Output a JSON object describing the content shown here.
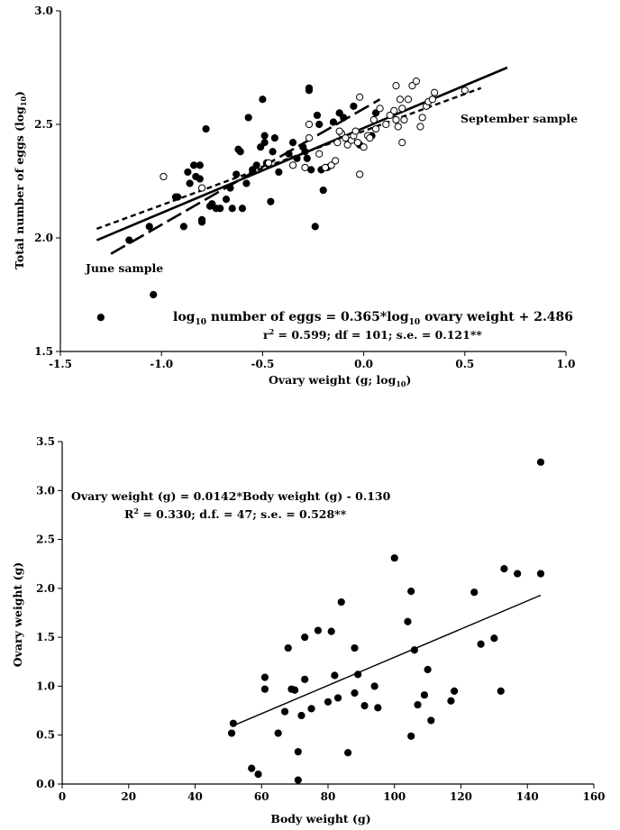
{
  "chart_data": [
    {
      "type": "scatter",
      "xlabel": "Ovary weight (g; log",
      "xlabel_sub": "10",
      "xlabel_end": ")",
      "ylabel": "Total number of eggs (log",
      "ylabel_sub": "10",
      "ylabel_end": ")",
      "xlim": [
        -1.5,
        1.0
      ],
      "ylim": [
        1.5,
        3.0
      ],
      "x_ticks": [
        -1.5,
        -1.0,
        -0.5,
        0.0,
        0.5,
        1.0
      ],
      "x_tick_labels": [
        "-1.5",
        "-1.0",
        "-0.5",
        "0.0",
        "0.5",
        "1.0"
      ],
      "y_ticks": [
        1.5,
        2.0,
        2.5,
        3.0
      ],
      "y_tick_labels": [
        "1.5",
        "2.0",
        "2.5",
        "3.0"
      ],
      "grid": false,
      "annotations": {
        "june": "June sample",
        "september": "September sample",
        "equation_parts": [
          "log",
          "10",
          " number of eggs = 0.365*log",
          "10",
          " ovary weight + 2.486"
        ],
        "stats_parts": [
          "r",
          "2",
          " = 0.599; df = 101; s.e. = 0.121**"
        ]
      },
      "series": [
        {
          "name": "June sample",
          "marker": "filled-circle",
          "points": [
            [
              -1.3,
              1.65
            ],
            [
              -1.04,
              1.75
            ],
            [
              -1.16,
              1.99
            ],
            [
              -1.06,
              2.05
            ],
            [
              -0.92,
              2.18
            ],
            [
              -0.93,
              2.18
            ],
            [
              -0.89,
              2.05
            ],
            [
              -0.86,
              2.24
            ],
            [
              -0.87,
              2.29
            ],
            [
              -0.84,
              2.32
            ],
            [
              -0.83,
              2.27
            ],
            [
              -0.81,
              2.26
            ],
            [
              -0.81,
              2.32
            ],
            [
              -0.8,
              2.07
            ],
            [
              -0.8,
              2.08
            ],
            [
              -0.78,
              2.48
            ],
            [
              -0.75,
              2.15
            ],
            [
              -0.73,
              2.13
            ],
            [
              -0.71,
              2.13
            ],
            [
              -0.66,
              2.22
            ],
            [
              -0.65,
              2.13
            ],
            [
              -0.63,
              2.28
            ],
            [
              -0.62,
              2.39
            ],
            [
              -0.61,
              2.38
            ],
            [
              -0.6,
              2.13
            ],
            [
              -0.58,
              2.24
            ],
            [
              -0.57,
              2.53
            ],
            [
              -0.53,
              2.32
            ],
            [
              -0.51,
              2.4
            ],
            [
              -0.5,
              2.61
            ],
            [
              -0.49,
              2.45
            ],
            [
              -0.49,
              2.42
            ],
            [
              -0.48,
              2.33
            ],
            [
              -0.46,
              2.16
            ],
            [
              -0.45,
              2.38
            ],
            [
              -0.44,
              2.44
            ],
            [
              -0.35,
              2.42
            ],
            [
              -0.33,
              2.35
            ],
            [
              -0.29,
              2.38
            ],
            [
              -0.28,
              2.35
            ],
            [
              -0.27,
              2.66
            ],
            [
              -0.27,
              2.65
            ],
            [
              -0.26,
              2.3
            ],
            [
              -0.24,
              2.05
            ],
            [
              -0.22,
              2.5
            ],
            [
              -0.21,
              2.3
            ],
            [
              -0.2,
              2.21
            ],
            [
              -0.18,
              2.31
            ],
            [
              -0.15,
              2.51
            ],
            [
              -0.12,
              2.55
            ],
            [
              -0.1,
              2.53
            ],
            [
              -0.05,
              2.58
            ],
            [
              -0.02,
              2.41
            ],
            [
              0.04,
              2.45
            ],
            [
              0.06,
              2.55
            ],
            [
              -0.37,
              2.37
            ],
            [
              -0.42,
              2.29
            ],
            [
              -0.55,
              2.3
            ],
            [
              -0.68,
              2.17
            ],
            [
              -0.76,
              2.14
            ],
            [
              -0.23,
              2.54
            ],
            [
              -0.3,
              2.4
            ]
          ]
        },
        {
          "name": "September sample",
          "marker": "open-circle",
          "points": [
            [
              -0.99,
              2.27
            ],
            [
              -0.8,
              2.22
            ],
            [
              -0.47,
              2.33
            ],
            [
              -0.35,
              2.32
            ],
            [
              -0.29,
              2.31
            ],
            [
              -0.27,
              2.44
            ],
            [
              -0.27,
              2.5
            ],
            [
              -0.22,
              2.37
            ],
            [
              -0.19,
              2.31
            ],
            [
              -0.16,
              2.32
            ],
            [
              -0.14,
              2.34
            ],
            [
              -0.13,
              2.42
            ],
            [
              -0.11,
              2.46
            ],
            [
              -0.09,
              2.44
            ],
            [
              -0.08,
              2.41
            ],
            [
              -0.06,
              2.43
            ],
            [
              -0.05,
              2.45
            ],
            [
              -0.04,
              2.47
            ],
            [
              -0.03,
              2.42
            ],
            [
              -0.02,
              2.28
            ],
            [
              -0.02,
              2.62
            ],
            [
              0.0,
              2.4
            ],
            [
              0.02,
              2.45
            ],
            [
              0.03,
              2.44
            ],
            [
              0.05,
              2.52
            ],
            [
              0.08,
              2.57
            ],
            [
              0.11,
              2.5
            ],
            [
              0.13,
              2.54
            ],
            [
              0.15,
              2.56
            ],
            [
              0.16,
              2.52
            ],
            [
              0.17,
              2.49
            ],
            [
              0.18,
              2.61
            ],
            [
              0.19,
              2.57
            ],
            [
              0.19,
              2.42
            ],
            [
              0.2,
              2.52
            ],
            [
              0.22,
              2.61
            ],
            [
              0.24,
              2.67
            ],
            [
              0.26,
              2.69
            ],
            [
              0.28,
              2.49
            ],
            [
              0.29,
              2.53
            ],
            [
              0.31,
              2.58
            ],
            [
              0.32,
              2.6
            ],
            [
              0.34,
              2.61
            ],
            [
              0.35,
              2.64
            ],
            [
              0.5,
              2.65
            ],
            [
              0.16,
              2.67
            ],
            [
              0.06,
              2.48
            ],
            [
              -0.12,
              2.47
            ]
          ]
        }
      ],
      "lines": [
        {
          "name": "regression-all",
          "style": "solid",
          "width": 2.6,
          "x": [
            -1.32,
            0.71
          ],
          "y": [
            1.99,
            2.75
          ]
        },
        {
          "name": "regression-june",
          "style": "long-dash",
          "width": 2.6,
          "x": [
            -1.25,
            0.08
          ],
          "y": [
            1.93,
            2.61
          ]
        },
        {
          "name": "regression-september",
          "style": "short-dash",
          "width": 2.4,
          "x": [
            -1.32,
            0.58
          ],
          "y": [
            2.04,
            2.66
          ]
        }
      ]
    },
    {
      "type": "scatter",
      "xlabel": "Body weight (g)",
      "ylabel": "Ovary weight (g)",
      "xlim": [
        0,
        160
      ],
      "ylim": [
        0.0,
        3.5
      ],
      "x_ticks": [
        0,
        20,
        40,
        60,
        80,
        100,
        120,
        140,
        160
      ],
      "x_tick_labels": [
        "0",
        "20",
        "40",
        "60",
        "80",
        "100",
        "120",
        "140",
        "160"
      ],
      "y_ticks": [
        0.0,
        0.5,
        1.0,
        1.5,
        2.0,
        2.5,
        3.0,
        3.5
      ],
      "y_tick_labels": [
        "0.0",
        "0.5",
        "1.0",
        "1.5",
        "2.0",
        "2.5",
        "3.0",
        "3.5"
      ],
      "grid": false,
      "annotations": {
        "equation": "Ovary weight (g) = 0.0142*Body weight (g) - 0.130",
        "stats_parts": [
          "R",
          "2",
          " = 0.330; d.f. = 47; s.e. = 0.528**"
        ]
      },
      "series": [
        {
          "marker": "filled-circle",
          "points": [
            [
              51,
              0.52
            ],
            [
              51.5,
              0.62
            ],
            [
              57,
              0.16
            ],
            [
              59,
              0.1
            ],
            [
              61,
              1.09
            ],
            [
              61,
              0.97
            ],
            [
              65,
              0.52
            ],
            [
              67,
              0.74
            ],
            [
              68,
              1.39
            ],
            [
              69,
              0.97
            ],
            [
              70,
              0.96
            ],
            [
              71,
              0.33
            ],
            [
              71,
              0.04
            ],
            [
              72,
              0.7
            ],
            [
              73,
              1.07
            ],
            [
              73,
              1.5
            ],
            [
              75,
              0.77
            ],
            [
              77,
              1.57
            ],
            [
              80,
              0.84
            ],
            [
              81,
              1.56
            ],
            [
              82,
              1.11
            ],
            [
              83,
              0.88
            ],
            [
              84,
              1.86
            ],
            [
              86,
              0.32
            ],
            [
              88,
              1.39
            ],
            [
              88,
              0.93
            ],
            [
              89,
              1.12
            ],
            [
              91,
              0.8
            ],
            [
              94,
              1.0
            ],
            [
              95,
              0.78
            ],
            [
              100,
              2.31
            ],
            [
              104,
              1.66
            ],
            [
              105,
              1.97
            ],
            [
              105,
              0.49
            ],
            [
              106,
              1.37
            ],
            [
              107,
              0.81
            ],
            [
              109,
              0.91
            ],
            [
              110,
              1.17
            ],
            [
              111,
              0.65
            ],
            [
              117,
              0.85
            ],
            [
              118,
              0.95
            ],
            [
              124,
              1.96
            ],
            [
              126,
              1.43
            ],
            [
              130,
              1.49
            ],
            [
              132,
              0.95
            ],
            [
              133,
              2.2
            ],
            [
              137,
              2.15
            ],
            [
              144,
              2.15
            ],
            [
              144,
              3.29
            ]
          ]
        }
      ],
      "lines": [
        {
          "name": "regression",
          "style": "solid",
          "width": 1.4,
          "x": [
            51,
            144
          ],
          "y": [
            0.59,
            1.93
          ]
        }
      ]
    }
  ]
}
